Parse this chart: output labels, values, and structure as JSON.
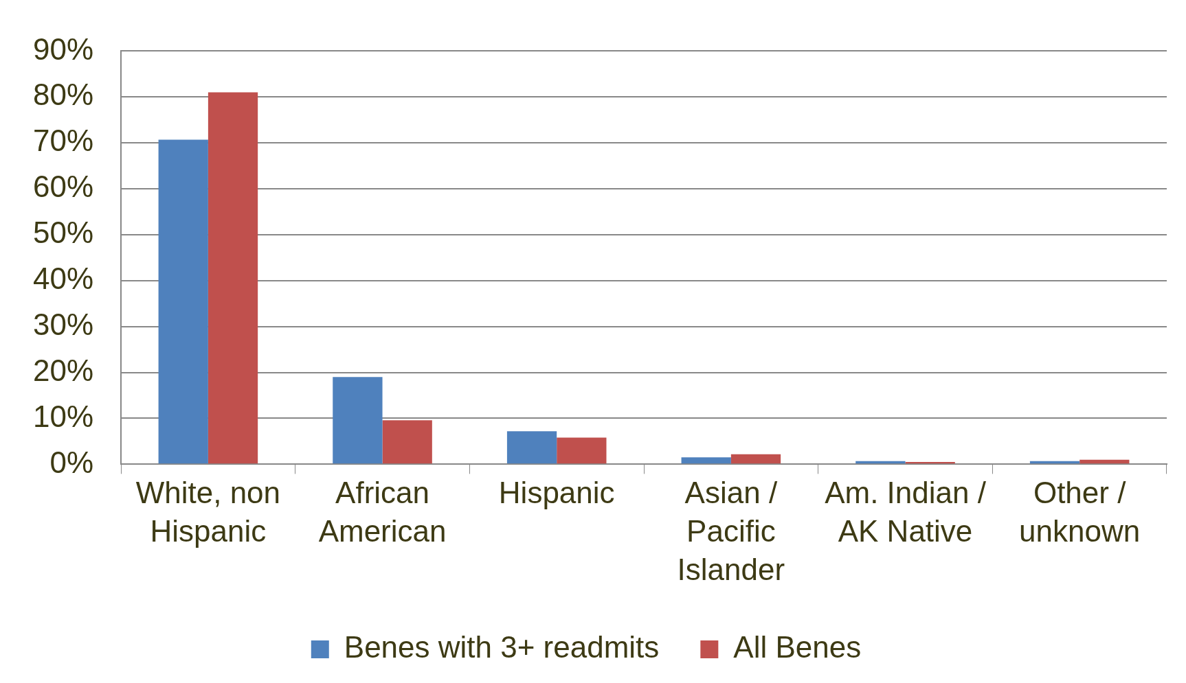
{
  "chart_data": {
    "type": "bar",
    "categories": [
      "White, non Hispanic",
      "African American",
      "Hispanic",
      "Asian / Pacific Islander",
      "Am. Indian / AK Native",
      "Other / unknown"
    ],
    "series": [
      {
        "name": "Benes with 3+ readmits",
        "color": "#4f81bd",
        "values": [
          70.7,
          19,
          7.2,
          1.5,
          0.7,
          0.7
        ]
      },
      {
        "name": "All Benes",
        "color": "#c0504d",
        "values": [
          81,
          9.6,
          5.8,
          2.2,
          0.5,
          1.0
        ]
      }
    ],
    "ylim": [
      0,
      90
    ],
    "yticks": [
      {
        "value": 0,
        "label": "0%"
      },
      {
        "value": 10,
        "label": "10%"
      },
      {
        "value": 20,
        "label": "20%"
      },
      {
        "value": 30,
        "label": "30%"
      },
      {
        "value": 40,
        "label": "40%"
      },
      {
        "value": 50,
        "label": "50%"
      },
      {
        "value": 60,
        "label": "60%"
      },
      {
        "value": 70,
        "label": "70%"
      },
      {
        "value": 80,
        "label": "80%"
      },
      {
        "value": 90,
        "label": "90%"
      }
    ],
    "grid": "y",
    "legend": "bottom"
  }
}
